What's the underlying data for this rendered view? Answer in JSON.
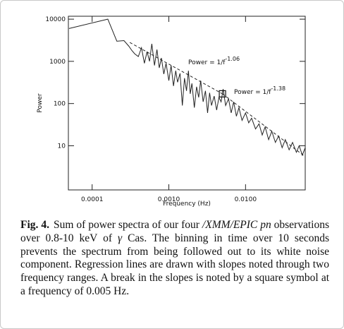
{
  "chart_data": {
    "type": "line",
    "xlabel": "Frequency (Hz)",
    "ylabel": "Power",
    "xlog": true,
    "ylog": true,
    "xlim": [
      4.9e-05,
      0.06
    ],
    "ylim": [
      0.9,
      11700
    ],
    "xticks": [
      0.0001,
      {
        "value": 0.001,
        "label": "0.0010"
      },
      {
        "value": 0.01,
        "label": "0.0100"
      }
    ],
    "yticks": [
      10,
      100,
      1000,
      10000
    ],
    "series": [
      {
        "color": "#222222",
        "dash": false,
        "x": [
          5e-05,
          0.00016,
          0.00021,
          0.00026,
          0.0003,
          0.00033,
          0.00036,
          0.0004,
          0.00044,
          0.00048,
          0.00052,
          0.00056,
          0.0006,
          0.00065,
          0.0007,
          0.00075,
          0.0008,
          0.00086,
          0.00092,
          0.001,
          0.00107,
          0.00115,
          0.00123,
          0.0013,
          0.0014,
          0.0015,
          0.0016,
          0.0017,
          0.0018,
          0.0019,
          0.002,
          0.00215,
          0.0023,
          0.00245,
          0.0026,
          0.0028,
          0.003,
          0.0032,
          0.0034,
          0.0036,
          0.0039,
          0.0042,
          0.0045,
          0.0048,
          0.0051,
          0.0055,
          0.006,
          0.0065,
          0.007,
          0.0076,
          0.0082,
          0.009,
          0.01,
          0.011,
          0.012,
          0.0135,
          0.015,
          0.0165,
          0.018,
          0.02,
          0.022,
          0.0245,
          0.027,
          0.03,
          0.033,
          0.037,
          0.041,
          0.046,
          0.05,
          0.055,
          0.06
        ],
        "values": [
          6000,
          10000,
          3000,
          3100,
          2300,
          1800,
          1500,
          1300,
          2100,
          900,
          1700,
          1000,
          2600,
          800,
          1900,
          700,
          1200,
          500,
          900,
          350,
          800,
          260,
          600,
          320,
          520,
          90,
          400,
          200,
          600,
          170,
          300,
          80,
          250,
          140,
          350,
          110,
          200,
          60,
          180,
          90,
          150,
          70,
          140,
          110,
          220,
          90,
          130,
          60,
          110,
          50,
          80,
          40,
          60,
          35,
          45,
          25,
          33,
          18,
          28,
          14,
          22,
          12,
          17,
          9,
          14,
          8,
          12,
          7,
          10,
          6,
          9
        ]
      },
      {
        "color": "#222222",
        "dash": true,
        "x": [
          0.00031,
          0.005
        ],
        "values": [
          2800,
          170
        ]
      },
      {
        "color": "#222222",
        "dash": true,
        "x": [
          0.005,
          0.06
        ],
        "values": [
          170,
          5.5
        ]
      }
    ],
    "break_point": {
      "x": 0.005,
      "y": 170
    },
    "annotations": [
      {
        "text": "Power = 1/f",
        "exponent": "-1.06"
      },
      {
        "text": "Power = 1/f",
        "exponent": "-1.38"
      }
    ]
  },
  "caption": {
    "label": "Fig. 4.",
    "runs": [
      {
        "text": "Sum of power spectra of our four "
      },
      {
        "text": "/XMM/EPIC pn",
        "italic": true
      },
      {
        "text": " observations over 0.8-10 keV of "
      },
      {
        "text": "γ",
        "italic": true
      },
      {
        "text": " Cas. The binning in time over 10 seconds prevents the spectrum from being followed out to its white noise component. Regression lines are drawn with slopes noted through two frequency ranges. A break in the slopes is noted by a square symbol at a frequency of 0.005 Hz."
      }
    ]
  }
}
